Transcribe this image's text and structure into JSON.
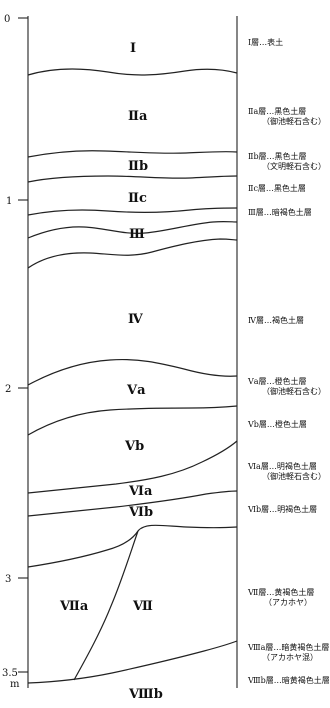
{
  "diagram": {
    "depth_labels": [
      "0",
      "1",
      "2",
      "3",
      "3.5",
      "m"
    ],
    "layer_labels": [
      "I",
      "Ⅱa",
      "Ⅱb",
      "Ⅱc",
      "Ⅲ",
      "Ⅳ",
      "Ⅴa",
      "Ⅴb",
      "Ⅵa",
      "Ⅵb",
      "Ⅶa",
      "Ⅶ",
      "Ⅷb"
    ],
    "legend": [
      {
        "lines": [
          "Ⅰ層…表土"
        ]
      },
      {
        "lines": [
          "Ⅱa層…黒色土層",
          "（御池軽石含む）"
        ]
      },
      {
        "lines": [
          "Ⅱb層…黒色土層",
          "（文明軽石含む）"
        ]
      },
      {
        "lines": [
          "Ⅱc層…黒色土層"
        ]
      },
      {
        "lines": [
          "Ⅲ層…暗褐色土層"
        ]
      },
      {
        "lines": [
          "Ⅳ層…褐色土層"
        ]
      },
      {
        "lines": [
          "Ⅴa層…橙色土層",
          "（御池軽石含む）"
        ]
      },
      {
        "lines": [
          "Ⅴb層…橙色土層"
        ]
      },
      {
        "lines": [
          "Ⅵa層…明褐色土層",
          "（御池軽石含む）"
        ]
      },
      {
        "lines": [
          "Ⅵb層…明褐色土層"
        ]
      },
      {
        "lines": [
          "Ⅶ層…黄褐色土層",
          "（アカホヤ）"
        ]
      },
      {
        "lines": [
          "Ⅷa層…暗黄褐色土層",
          "（アカホヤ混）"
        ]
      },
      {
        "lines": [
          "Ⅷb層…暗黄褐色土層"
        ]
      }
    ]
  }
}
